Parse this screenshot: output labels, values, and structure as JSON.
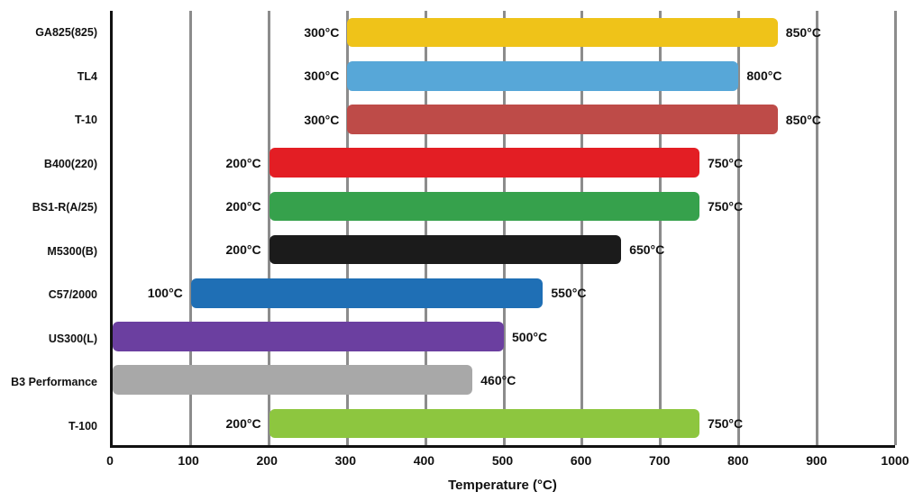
{
  "chart_data": {
    "type": "bar",
    "subtype": "horizontal-range-bars",
    "title": "",
    "xlabel": "Temperature (°C)",
    "ylabel": "",
    "xlim": [
      0,
      1000
    ],
    "x_ticks": [
      0,
      100,
      200,
      300,
      400,
      500,
      600,
      700,
      800,
      900,
      1000
    ],
    "grid": true,
    "gridline_color": "#8c8c8c",
    "axis_color": "#111111",
    "legend": "none",
    "categories": [
      "GA825(825)",
      "TL4",
      "T-10",
      "B400(220)",
      "BS1-R(A/25)",
      "M5300(B)",
      "C57/2000",
      "US300(L)",
      "B3 Performance",
      "T-100"
    ],
    "bars": [
      {
        "category": "GA825(825)",
        "start": 300,
        "end": 850,
        "start_label": "300°C",
        "end_label": "850°C",
        "color": "#efc319"
      },
      {
        "category": "TL4",
        "start": 300,
        "end": 800,
        "start_label": "300°C",
        "end_label": "800°C",
        "color": "#57a7d8"
      },
      {
        "category": "T-10",
        "start": 300,
        "end": 850,
        "start_label": "300°C",
        "end_label": "850°C",
        "color": "#be4b48"
      },
      {
        "category": "B400(220)",
        "start": 200,
        "end": 750,
        "start_label": "200°C",
        "end_label": "750°C",
        "color": "#e31e24"
      },
      {
        "category": "BS1-R(A/25)",
        "start": 200,
        "end": 750,
        "start_label": "200°C",
        "end_label": "750°C",
        "color": "#36a14c"
      },
      {
        "category": "M5300(B)",
        "start": 200,
        "end": 650,
        "start_label": "200°C",
        "end_label": "650°C",
        "color": "#1b1b1b"
      },
      {
        "category": "C57/2000",
        "start": 100,
        "end": 550,
        "start_label": "100°C",
        "end_label": "550°C",
        "color": "#1f6fb5"
      },
      {
        "category": "US300(L)",
        "start": 0,
        "end": 500,
        "start_label": "",
        "end_label": "500°C",
        "color": "#6b3fa0"
      },
      {
        "category": "B3 Performance",
        "start": 0,
        "end": 460,
        "start_label": "",
        "end_label": "460°C",
        "color": "#a8a8a8"
      },
      {
        "category": "T-100",
        "start": 200,
        "end": 750,
        "start_label": "200°C",
        "end_label": "750°C",
        "color": "#8dc63f"
      }
    ]
  }
}
